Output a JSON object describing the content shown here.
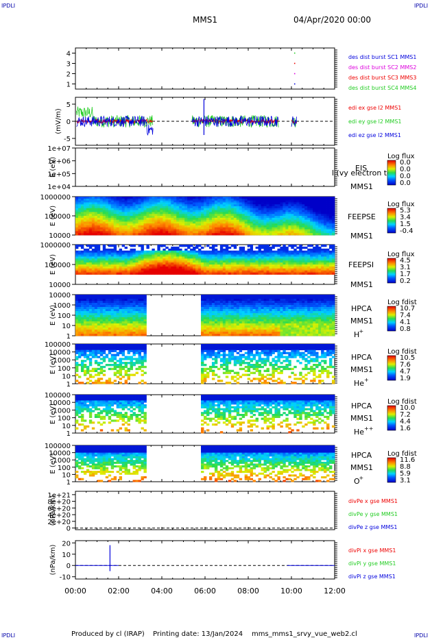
{
  "corners": {
    "tl": "IPDLI",
    "tr": "IPDLI",
    "bl": "IPDLI",
    "br": "IPDLI"
  },
  "header": {
    "spacecraft": "MMS1",
    "datetime": "04/Apr/2020 00:00"
  },
  "footer": {
    "produced": "Produced by cl (IRAP)",
    "printing": "Printing date: 13/Jan/2024",
    "script": "mms_mms1_srvy_vue_web2.cl"
  },
  "colors": {
    "red": "#ee0000",
    "green": "#22cc22",
    "blue": "#0000dd",
    "magenta": "#dd00dd",
    "axis": "#000000"
  },
  "x_axis": {
    "tick_labels": [
      "00:00",
      "02:00",
      "04:00",
      "06:00",
      "08:00",
      "10:00",
      "12:00"
    ],
    "range_hours": [
      0,
      12
    ]
  },
  "chart_data": [
    {
      "type": "scatter",
      "id": "p1",
      "ylabel": "",
      "ylim": [
        0.5,
        4.5
      ],
      "tick_labels": [
        "4",
        "3",
        "2",
        "1"
      ],
      "tick_values": [
        4,
        3,
        2,
        1
      ],
      "legend": [
        {
          "text": "des dist burst SC1 MMS1",
          "color": "#0000dd"
        },
        {
          "text": "des dist burst SC2 MMS2",
          "color": "#dd00dd"
        },
        {
          "text": "des dist burst SC3 MMS3",
          "color": "#ee0000"
        },
        {
          "text": "des dist burst SC4 MMS4",
          "color": "#22cc22"
        }
      ],
      "series": [
        {
          "name": "des dist burst SC1 MMS1",
          "color": "#0000dd",
          "x": [
            10.15
          ],
          "y": [
            1
          ]
        },
        {
          "name": "des dist burst SC2 MMS2",
          "color": "#dd00dd",
          "x": [
            10.15
          ],
          "y": [
            2
          ]
        },
        {
          "name": "des dist burst SC3 MMS3",
          "color": "#ee0000",
          "x": [
            10.15
          ],
          "y": [
            3
          ]
        },
        {
          "name": "des dist burst SC4 MMS4",
          "color": "#22cc22",
          "x": [
            10.15
          ],
          "y": [
            4
          ]
        }
      ]
    },
    {
      "type": "line",
      "id": "p2",
      "ylabel": "(mV/m)",
      "ylim": [
        -7,
        7
      ],
      "tick_labels": [
        "5",
        "0",
        "-5"
      ],
      "tick_values": [
        5,
        0,
        -5
      ],
      "legend": [
        {
          "text": "edi ex gse l2 MMS1",
          "color": "#ee0000"
        },
        {
          "text": "edi ey gse l2 MMS1",
          "color": "#22cc22"
        },
        {
          "text": "edi ez gse l2 MMS1",
          "color": "#0000dd"
        }
      ],
      "segments": [
        [
          0.05,
          3.6
        ],
        [
          5.4,
          9.4
        ],
        [
          10.0,
          10.25
        ]
      ],
      "spike": {
        "x": 5.95,
        "ymax": 6.5,
        "ymin": -4
      }
    },
    {
      "type": "heatmap",
      "id": "p3",
      "ylabel": "E (eV)",
      "scale": "log",
      "tick_labels": [
        "1e+07",
        "1e+06",
        "1e+05",
        "1e+04"
      ],
      "instrument": "EIS",
      "spacecraft": "MMS1",
      "overlay": "l (vy electron to",
      "cbar": {
        "title": "Log flux",
        "labels": [
          "0.0",
          "0.0",
          "0.0",
          "0.0"
        ]
      }
    },
    {
      "type": "heatmap",
      "id": "p4",
      "ylabel": "E (eV)",
      "scale": "log",
      "tick_labels": [
        "1000000",
        "100000",
        "10000"
      ],
      "instrument": "FEEPSE",
      "spacecraft": "MMS1",
      "cbar": {
        "title": "Log flux",
        "labels": [
          "5.3",
          "3.4",
          "1.5",
          "-0.4"
        ]
      }
    },
    {
      "type": "heatmap",
      "id": "p5",
      "ylabel": "E (eV)",
      "scale": "log",
      "tick_labels": [
        "1000000",
        "100000",
        "10000"
      ],
      "instrument": "FEEPSI",
      "spacecraft": "MMS1",
      "cbar": {
        "title": "Log flux",
        "labels": [
          "4.5",
          "3.1",
          "1.7",
          "0.2"
        ]
      }
    },
    {
      "type": "heatmap",
      "id": "p6",
      "ylabel": "E (eV)",
      "scale": "log",
      "tick_labels": [
        "10000",
        "1000",
        "100",
        "10",
        "1"
      ],
      "instrument": "HPCA",
      "spacecraft": "MMS1",
      "species": "H",
      "charge": "+",
      "gap": [
        3.25,
        5.85
      ],
      "cbar": {
        "title": "Log fdist",
        "labels": [
          "10.7",
          "7.4",
          "4.1",
          "0.8"
        ]
      }
    },
    {
      "type": "heatmap",
      "id": "p7",
      "ylabel": "E (eV)",
      "scale": "log",
      "tick_labels": [
        "100000",
        "10000",
        "1000",
        "100",
        "10",
        "1"
      ],
      "instrument": "HPCA",
      "spacecraft": "MMS1",
      "species": "He",
      "charge": "+",
      "gap": [
        3.25,
        5.85
      ],
      "cbar": {
        "title": "Log fdist",
        "labels": [
          "10.5",
          "7.6",
          "4.7",
          "1.9"
        ]
      }
    },
    {
      "type": "heatmap",
      "id": "p8",
      "ylabel": "E (eV)",
      "scale": "log",
      "tick_labels": [
        "100000",
        "10000",
        "1000",
        "100",
        "10",
        "1"
      ],
      "instrument": "HPCA",
      "spacecraft": "MMS1",
      "species": "He",
      "charge": "++",
      "gap": [
        3.25,
        5.85
      ],
      "cbar": {
        "title": "Log fdist",
        "labels": [
          "10.0",
          "7.2",
          "4.4",
          "1.6"
        ]
      }
    },
    {
      "type": "heatmap",
      "id": "p9",
      "ylabel": "E (eV)",
      "scale": "log",
      "tick_labels": [
        "100000",
        "10000",
        "1000",
        "100",
        "10",
        "1"
      ],
      "instrument": "HPCA",
      "spacecraft": "MMS1",
      "species": "O",
      "charge": "+",
      "gap": [
        3.25,
        5.85
      ],
      "cbar": {
        "title": "Log fdist",
        "labels": [
          "11.6",
          "8.8",
          "5.9",
          "3.1"
        ]
      }
    },
    {
      "type": "line",
      "id": "p10",
      "ylabel": "(nPa/km)",
      "ylim": [
        -5e+19,
        1.1e+21
      ],
      "tick_labels": [
        "1e+21",
        "8e+20",
        "6e+20",
        "4e+20",
        "2e+20",
        "0"
      ],
      "tick_values": [
        1e+21,
        8e+20,
        6e+20,
        4e+20,
        2e+20,
        0
      ],
      "legend": [
        {
          "text": "divPe x gse MMS1",
          "color": "#ee0000"
        },
        {
          "text": "divPe y gse MMS1",
          "color": "#22cc22"
        },
        {
          "text": "divPe z gse MMS1",
          "color": "#0000dd"
        }
      ]
    },
    {
      "type": "line",
      "id": "p11",
      "ylabel": "(nPa/km)",
      "ylim": [
        -12,
        22
      ],
      "tick_labels": [
        "20",
        "10",
        "0",
        "-10"
      ],
      "tick_values": [
        20,
        10,
        0,
        -10
      ],
      "legend": [
        {
          "text": "divPi x gse MMS1",
          "color": "#ee0000"
        },
        {
          "text": "divPi y gse MMS1",
          "color": "#22cc22"
        },
        {
          "text": "divPi z gse MMS1",
          "color": "#0000dd"
        }
      ],
      "spike": {
        "x": 1.6,
        "ymax": 18,
        "ymin": -5
      },
      "segments": [
        [
          0,
          2.0
        ],
        [
          9.8,
          12
        ]
      ]
    }
  ]
}
